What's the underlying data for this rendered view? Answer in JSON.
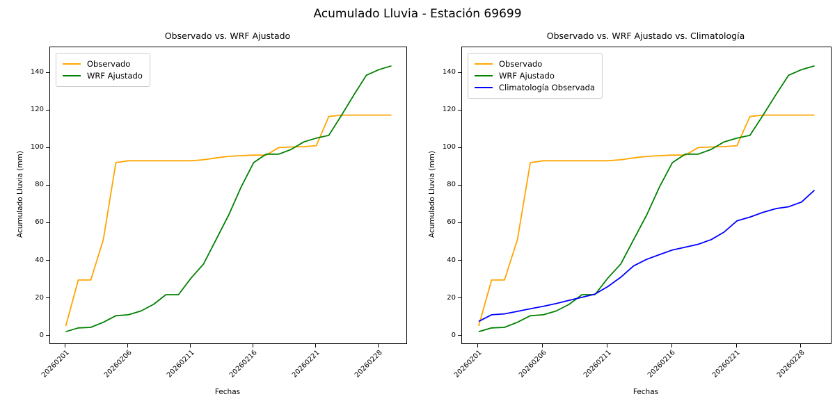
{
  "suptitle": "Acumulado Lluvia - Estación 69699",
  "chart_data": [
    {
      "type": "line",
      "title": "Observado vs. WRF Ajustado",
      "xlabel": "Fechas",
      "ylabel": "Acumulado Lluvia (mm)",
      "x_tick_labels": [
        "20260201",
        "20260206",
        "20260211",
        "20260216",
        "20260221",
        "20260228"
      ],
      "x_tick_positions": [
        0,
        5,
        10,
        15,
        20,
        25
      ],
      "n_points": 27,
      "y_ticks": [
        0,
        20,
        40,
        60,
        80,
        100,
        120,
        140
      ],
      "ylim": [
        -4.2,
        153.4
      ],
      "grid": false,
      "legend_position": "upper left",
      "series": [
        {
          "name": "Observado",
          "color": "#FFA500",
          "values": [
            5,
            29.5,
            29.5,
            51,
            92,
            93,
            93,
            93,
            93,
            93,
            93,
            93.5,
            94.5,
            95.3,
            95.7,
            96,
            96,
            100,
            100.3,
            100.5,
            101,
            116.5,
            117.3,
            117.3,
            117.3,
            117.3,
            117.3
          ]
        },
        {
          "name": "WRF Ajustado",
          "color": "#008000",
          "values": [
            2,
            4,
            4.3,
            7,
            10.5,
            11,
            13,
            16.5,
            21.7,
            21.7,
            30.5,
            38,
            51,
            64,
            79,
            92,
            96.5,
            96.5,
            99,
            103,
            105,
            106.5,
            117,
            128,
            138.5,
            141.5,
            143.5
          ]
        }
      ]
    },
    {
      "type": "line",
      "title": "Observado vs. WRF Ajustado vs. Climatología",
      "xlabel": "Fechas",
      "ylabel": "Acumulado Lluvia (mm)",
      "x_tick_labels": [
        "20260201",
        "20260206",
        "20260211",
        "20260216",
        "20260221",
        "20260228"
      ],
      "x_tick_positions": [
        0,
        5,
        10,
        15,
        20,
        25
      ],
      "n_points": 27,
      "y_ticks": [
        0,
        20,
        40,
        60,
        80,
        100,
        120,
        140
      ],
      "ylim": [
        -4.2,
        153.4
      ],
      "grid": false,
      "legend_position": "upper left",
      "series": [
        {
          "name": "Observado",
          "color": "#FFA500",
          "values": [
            5,
            29.5,
            29.5,
            51,
            92,
            93,
            93,
            93,
            93,
            93,
            93,
            93.5,
            94.5,
            95.3,
            95.7,
            96,
            96,
            100,
            100.3,
            100.5,
            101,
            116.5,
            117.3,
            117.3,
            117.3,
            117.3,
            117.3
          ]
        },
        {
          "name": "WRF Ajustado",
          "color": "#008000",
          "values": [
            2,
            4,
            4.3,
            7,
            10.5,
            11,
            13,
            16.5,
            21.7,
            21.7,
            30.5,
            38,
            51,
            64,
            79,
            92,
            96.5,
            96.5,
            99,
            103,
            105,
            106.5,
            117,
            128,
            138.5,
            141.5,
            143.5
          ]
        },
        {
          "name": "Climatología Observada",
          "color": "#0000FF",
          "values": [
            7.5,
            11,
            11.5,
            12.8,
            14.2,
            15.5,
            17,
            18.7,
            20.3,
            22,
            26,
            31,
            37,
            40.5,
            43,
            45.5,
            47,
            48.5,
            51,
            55,
            61,
            63,
            65.5,
            67.5,
            68.5,
            71,
            77.3
          ]
        }
      ]
    }
  ]
}
